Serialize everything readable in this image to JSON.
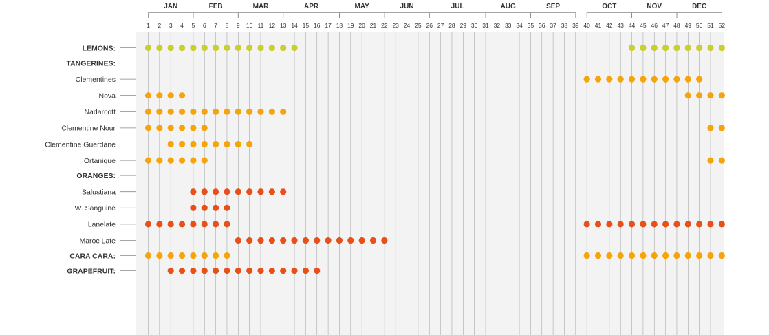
{
  "chart_data": {
    "type": "scatter",
    "title": "",
    "xlabel": "",
    "ylabel": "",
    "x_range": [
      1,
      52
    ],
    "grid": true,
    "colors": {
      "lemon": "#c9cf2e",
      "tangerine": "#f5a40c",
      "orange": "#e8501a",
      "grapefruit": "#e8501a",
      "background": "#f3f3f3",
      "grid": "#aaaaaa"
    },
    "months": [
      {
        "name": "JAN",
        "start": 1,
        "end": 5
      },
      {
        "name": "FEB",
        "start": 5,
        "end": 9
      },
      {
        "name": "MAR",
        "start": 9,
        "end": 13
      },
      {
        "name": "APR",
        "start": 13,
        "end": 18
      },
      {
        "name": "MAY",
        "start": 18,
        "end": 22
      },
      {
        "name": "JUN",
        "start": 22,
        "end": 26
      },
      {
        "name": "JUL",
        "start": 26,
        "end": 31
      },
      {
        "name": "AUG",
        "start": 31,
        "end": 35
      },
      {
        "name": "SEP",
        "start": 35,
        "end": 39
      },
      {
        "name": "OCT",
        "start": 40,
        "end": 44
      },
      {
        "name": "NOV",
        "start": 44,
        "end": 48
      },
      {
        "name": "DEC",
        "start": 48,
        "end": 52
      }
    ],
    "weeks": [
      "1",
      "2",
      "3",
      "4",
      "5",
      "6",
      "7",
      "8",
      "9",
      "10",
      "11",
      "12",
      "13",
      "14",
      "15",
      "16",
      "17",
      "18",
      "19",
      "20",
      "21",
      "22",
      "23",
      "24",
      "25",
      "26",
      "27",
      "28",
      "29",
      "30",
      "31",
      "32",
      "33",
      "34",
      "35",
      "36",
      "37",
      "38",
      "39",
      "40",
      "41",
      "42",
      "43",
      "44",
      "45",
      "46",
      "47",
      "48",
      "49",
      "50",
      "51",
      "52"
    ],
    "rows": [
      {
        "label": "LEMONS:",
        "group": true,
        "color": "lemon",
        "weeks": [
          1,
          2,
          3,
          4,
          5,
          6,
          7,
          8,
          9,
          10,
          11,
          12,
          13,
          14,
          44,
          45,
          46,
          47,
          48,
          49,
          50,
          51,
          52
        ]
      },
      {
        "gap": true
      },
      {
        "label": "TANGERINES:",
        "group": true,
        "color": "tangerine",
        "weeks": []
      },
      {
        "label": "Clementines",
        "group": false,
        "color": "tangerine",
        "weeks": [
          40,
          41,
          42,
          43,
          44,
          45,
          46,
          47,
          48,
          49,
          50
        ]
      },
      {
        "label": "Nova",
        "group": false,
        "color": "tangerine",
        "weeks": [
          1,
          2,
          3,
          4,
          49,
          50,
          51,
          52
        ]
      },
      {
        "label": "Nadarcott",
        "group": false,
        "color": "tangerine",
        "weeks": [
          1,
          2,
          3,
          4,
          5,
          6,
          7,
          8,
          9,
          10,
          11,
          12,
          13
        ]
      },
      {
        "label": "Clementine Nour",
        "group": false,
        "color": "tangerine",
        "weeks": [
          1,
          2,
          3,
          4,
          5,
          6,
          51,
          52
        ]
      },
      {
        "label": "Clementine Guerdane",
        "group": false,
        "color": "tangerine",
        "weeks": [
          3,
          4,
          5,
          6,
          7,
          8,
          9,
          10
        ]
      },
      {
        "label": "Ortanique",
        "group": false,
        "color": "tangerine",
        "weeks": [
          1,
          2,
          3,
          4,
          5,
          6,
          51,
          52
        ]
      },
      {
        "gap": true
      },
      {
        "label": "ORANGES:",
        "group": true,
        "color": "orange",
        "weeks": []
      },
      {
        "label": "Salustiana",
        "group": false,
        "color": "orange",
        "weeks": [
          5,
          6,
          7,
          8,
          9,
          10,
          11,
          12,
          13
        ]
      },
      {
        "label": "W. Sanguine",
        "group": false,
        "color": "orange",
        "weeks": [
          5,
          6,
          7,
          8
        ]
      },
      {
        "label": "Lanelate",
        "group": false,
        "color": "orange",
        "weeks": [
          1,
          2,
          3,
          4,
          5,
          6,
          7,
          8,
          40,
          41,
          42,
          43,
          44,
          45,
          46,
          47,
          48,
          49,
          50,
          51,
          52
        ]
      },
      {
        "label": "Maroc Late",
        "group": false,
        "color": "orange",
        "weeks": [
          9,
          10,
          11,
          12,
          13,
          14,
          15,
          16,
          17,
          18,
          19,
          20,
          21,
          22
        ]
      },
      {
        "gap": true
      },
      {
        "label": "CARA CARA:",
        "group": true,
        "color": "tangerine",
        "weeks": [
          1,
          2,
          3,
          4,
          5,
          6,
          7,
          8,
          40,
          41,
          42,
          43,
          44,
          45,
          46,
          47,
          48,
          49,
          50,
          51,
          52
        ]
      },
      {
        "gap": true
      },
      {
        "label": "GRAPEFRUIT:",
        "group": true,
        "color": "grapefruit",
        "weeks": [
          3,
          4,
          5,
          6,
          7,
          8,
          9,
          10,
          11,
          12,
          13,
          14,
          15,
          16
        ]
      }
    ]
  }
}
